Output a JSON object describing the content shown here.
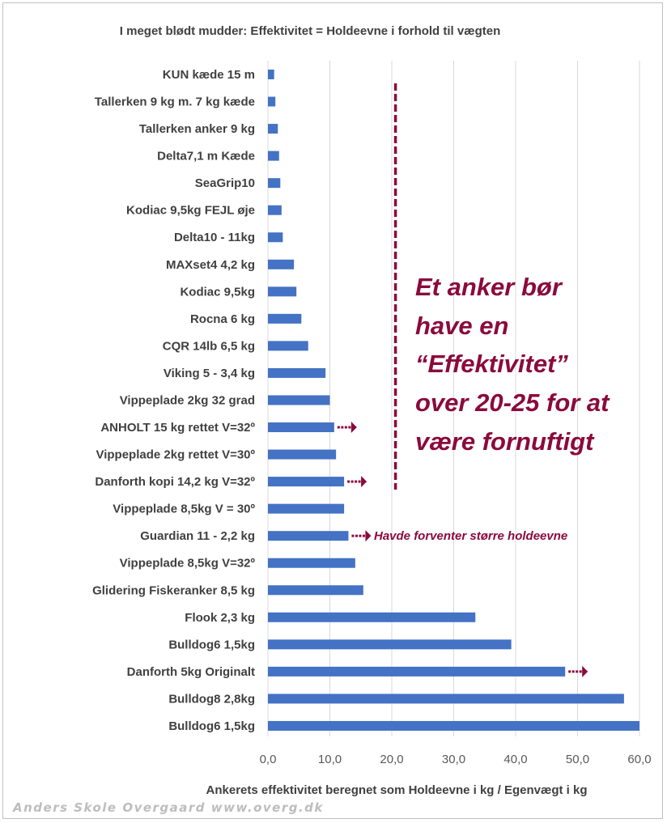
{
  "chart_data": {
    "type": "bar",
    "orientation": "horizontal",
    "title": "I meget blødt mudder: Effektivitet = Holdeevne i forhold til vægten",
    "xlabel": "Ankerets effektivitet beregnet som Holdeevne i kg / Egenvægt i kg",
    "xlim": [
      0,
      60
    ],
    "xticks": [
      "0,0",
      "10,0",
      "20,0",
      "30,0",
      "40,0",
      "50,0",
      "60,0"
    ],
    "xtick_values": [
      0,
      10,
      20,
      30,
      40,
      50,
      60
    ],
    "grid": "vertical",
    "bar_color": "#4472c4",
    "categories": [
      "KUN kæde 15 m",
      "Tallerken 9 kg m. 7 kg kæde",
      "Tallerken anker 9 kg",
      "Delta7,1 m Kæde",
      "SeaGrip10",
      "Kodiac 9,5kg FEJL øje",
      "Delta10 - 11kg",
      "MAXset4  4,2 kg",
      "Kodiac 9,5kg",
      "Rocna 6 kg",
      "CQR 14lb 6,5 kg",
      "Viking 5 - 3,4 kg",
      "Vippeplade 2kg 32 grad",
      "ANHOLT 15 kg rettet V=32º",
      "Vippeplade 2kg rettet V=30º",
      "Danforth kopi 14,2 kg V=32º",
      "Vippeplade 8,5kg V = 30º",
      "Guardian 11 - 2,2 kg",
      "Vippeplade 8,5kg V=32º",
      "Glidering Fiskeranker 8,5 kg",
      "Flook 2,3 kg",
      "Bulldog6  1,5kg",
      "Danforth 5kg Originalt",
      "Bulldog8   2,8kg",
      "Bulldog6  1,5kg"
    ],
    "values": [
      1.0,
      1.2,
      1.6,
      1.8,
      2.0,
      2.2,
      2.4,
      4.2,
      4.6,
      5.4,
      6.5,
      9.3,
      10.0,
      10.7,
      11.0,
      12.3,
      12.3,
      13.0,
      14.1,
      15.4,
      33.5,
      39.3,
      48.0,
      57.5,
      60.0
    ],
    "arrows_on": [
      13,
      15,
      17,
      22
    ],
    "arrow_color": "#8b0a3c",
    "threshold_line": {
      "x": 20.6,
      "style": "dashed",
      "color": "#8b0a3c"
    },
    "annotations": {
      "main_lines": [
        "Et anker bør",
        "have en",
        "“Effektivitet”",
        "over 20-25 for at",
        "være fornuftigt"
      ],
      "guardian_note": "Havde forventer større holdeevne"
    }
  },
  "credit": "Anders Skole Overgaard www.overg.dk"
}
